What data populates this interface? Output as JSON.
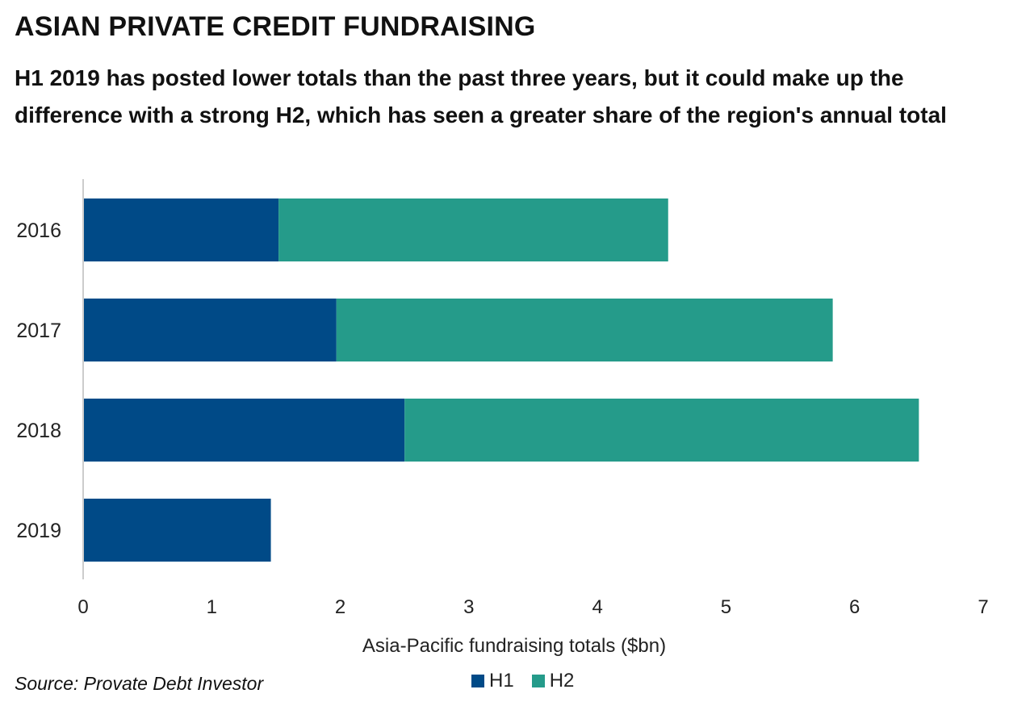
{
  "title": "ASIAN PRIVATE CREDIT FUNDRAISING",
  "subtitle": "H1 2019 has posted lower totals than the past three years, but it could make up the difference with a strong H2, which has seen a greater share of the region's annual total",
  "source": "Source: Provate Debt Investor",
  "colors": {
    "H1": "#004a87",
    "H2": "#259b8a",
    "axis": "#cccccc"
  },
  "chart_data": {
    "type": "bar",
    "orientation": "horizontal",
    "stacked": true,
    "categories": [
      "2016",
      "2017",
      "2018",
      "2019"
    ],
    "series": [
      {
        "name": "H1",
        "values": [
          1.52,
          1.97,
          2.5,
          1.46
        ]
      },
      {
        "name": "H2",
        "values": [
          3.03,
          3.86,
          4.0,
          0
        ]
      }
    ],
    "xlabel": "Asia-Pacific fundraising totals ($bn)",
    "ylabel": "",
    "xlim": [
      0,
      7
    ],
    "xticks": [
      "0",
      "1",
      "2",
      "3",
      "4",
      "5",
      "6",
      "7"
    ],
    "grid": false,
    "legend": "bottom"
  }
}
